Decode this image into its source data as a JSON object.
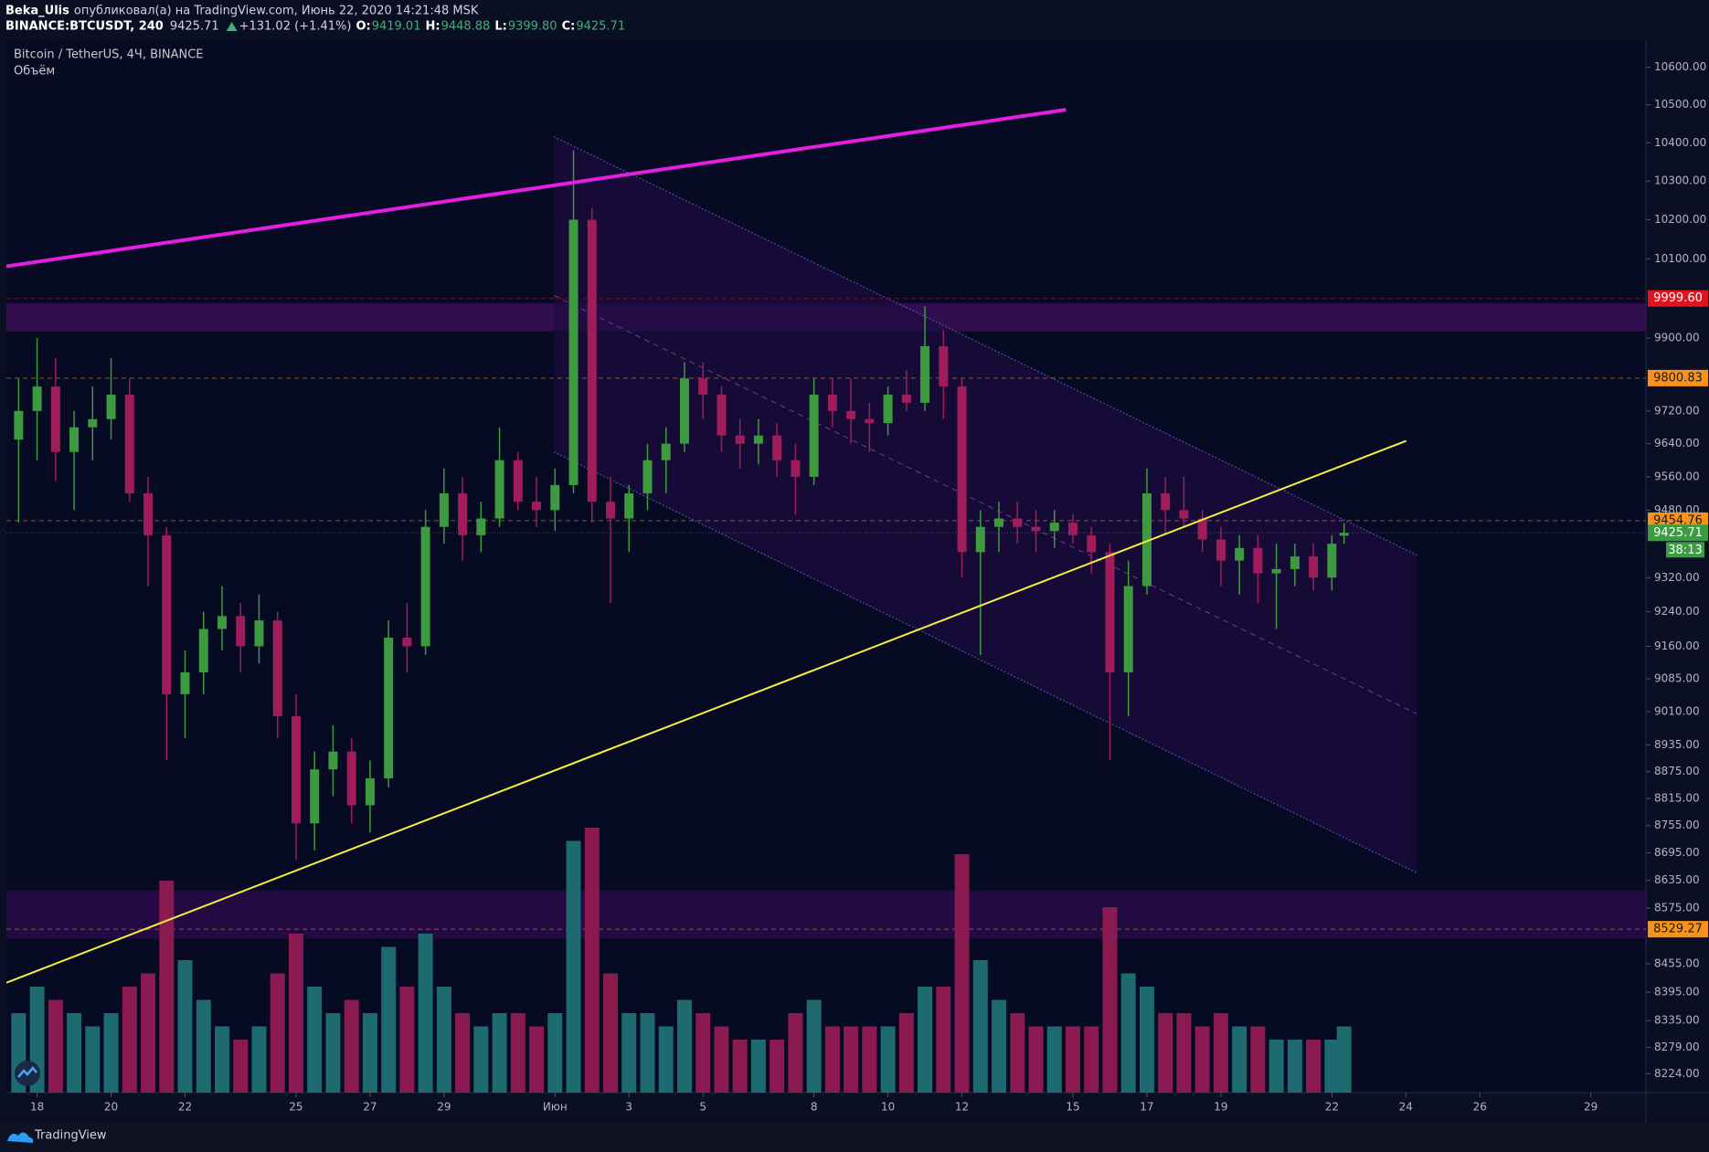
{
  "header": {
    "author": "Beka_Ulis",
    "published": "опубликовал(а) на TradingView.com, Июнь 22, 2020 14:21:48 MSK",
    "symbol": "BINANCE:BTCUSDT, 240",
    "last": "9425.71",
    "change": "+131.02 (+1.41%)",
    "ohlc": [
      {
        "label": "O:",
        "value": "9419.01"
      },
      {
        "label": "H:",
        "value": "9448.88"
      },
      {
        "label": "L:",
        "value": "9399.80"
      },
      {
        "label": "C:",
        "value": "9425.71"
      }
    ]
  },
  "footer": {
    "brand": "TradingView"
  },
  "chart_data": {
    "type": "candlestick",
    "title": "Bitcoin / TetherUS, 4Ч, BINANCE",
    "volume_label": "Объём",
    "log": true,
    "ylim": [
      8185,
      10670
    ],
    "xlim": [
      17.17,
      61.49
    ],
    "yticks": [
      {
        "value": 10600,
        "label": "10600.00"
      },
      {
        "value": 10500,
        "label": "10500.00"
      },
      {
        "value": 10400,
        "label": "10400.00"
      },
      {
        "value": 10300,
        "label": "10300.00"
      },
      {
        "value": 10200,
        "label": "10200.00"
      },
      {
        "value": 10100,
        "label": "10100.00"
      },
      {
        "value": 9900,
        "label": "9900.00"
      },
      {
        "value": 9720,
        "label": "9720.00"
      },
      {
        "value": 9640,
        "label": "9640.00"
      },
      {
        "value": 9560,
        "label": "9560.00"
      },
      {
        "value": 9480,
        "label": "9480.00"
      },
      {
        "value": 9320,
        "label": "9320.00"
      },
      {
        "value": 9240,
        "label": "9240.00"
      },
      {
        "value": 9160,
        "label": "9160.00"
      },
      {
        "value": 9085,
        "label": "9085.00"
      },
      {
        "value": 9010,
        "label": "9010.00"
      },
      {
        "value": 8935,
        "label": "8935.00"
      },
      {
        "value": 8875,
        "label": "8875.00"
      },
      {
        "value": 8815,
        "label": "8815.00"
      },
      {
        "value": 8755,
        "label": "8755.00"
      },
      {
        "value": 8695,
        "label": "8695.00"
      },
      {
        "value": 8635,
        "label": "8635.00"
      },
      {
        "value": 8575,
        "label": "8575.00"
      },
      {
        "value": 8455,
        "label": "8455.00"
      },
      {
        "value": 8395,
        "label": "8395.00"
      },
      {
        "value": 8335,
        "label": "8335.00"
      },
      {
        "value": 8279,
        "label": "8279.00"
      },
      {
        "value": 8224,
        "label": "8224.00"
      }
    ],
    "xticks": [
      18,
      20,
      22,
      25,
      27,
      29,
      {
        "value": 32,
        "label": "Июн"
      },
      {
        "value": 34,
        "label": "3"
      },
      {
        "value": 36,
        "label": "5"
      },
      {
        "value": 39,
        "label": "8"
      },
      {
        "value": 41,
        "label": "10"
      },
      {
        "value": 43,
        "label": "12"
      },
      {
        "value": 46,
        "label": "15"
      },
      {
        "value": 48,
        "label": "17"
      },
      {
        "value": 50,
        "label": "19"
      },
      {
        "value": 53,
        "label": "22"
      },
      {
        "value": 55,
        "label": "24"
      },
      {
        "value": 57,
        "label": "26"
      },
      {
        "value": 60,
        "label": "29"
      }
    ],
    "up_color": "#3e9a3f",
    "down_color": "#a01d5b",
    "volume_up_color": "#1d6a70",
    "volume_down_color": "#8a1a4f",
    "x": [
      17.5,
      18,
      18.5,
      19,
      19.5,
      20,
      20.5,
      21,
      21.5,
      22,
      22.5,
      23,
      23.5,
      24,
      24.5,
      25,
      25.5,
      26,
      26.5,
      27,
      27.5,
      28,
      28.5,
      29,
      29.5,
      30,
      30.5,
      31,
      31.5,
      32,
      32.5,
      33,
      33.5,
      34,
      34.5,
      35,
      35.5,
      36,
      36.5,
      37,
      37.5,
      38,
      38.5,
      39,
      39.5,
      40,
      40.5,
      41,
      41.5,
      42,
      42.5,
      43,
      43.5,
      44,
      44.5,
      45,
      45.5,
      46,
      46.5,
      47,
      47.5,
      48,
      48.5,
      49,
      49.5,
      50,
      50.5,
      51,
      51.5,
      52,
      52.5,
      53,
      53.33
    ],
    "open": [
      9650,
      9720,
      9780,
      9620,
      9680,
      9700,
      9760,
      9520,
      9420,
      9050,
      9100,
      9200,
      9230,
      9160,
      9220,
      9000,
      8760,
      8880,
      8920,
      8800,
      8860,
      9180,
      9160,
      9440,
      9520,
      9420,
      9460,
      9600,
      9500,
      9480,
      9540,
      10200,
      9500,
      9460,
      9520,
      9600,
      9640,
      9800,
      9760,
      9660,
      9640,
      9660,
      9600,
      9560,
      9760,
      9720,
      9700,
      9690,
      9760,
      9740,
      9880,
      9780,
      9380,
      9440,
      9460,
      9440,
      9430,
      9450,
      9420,
      9380,
      9100,
      9300,
      9520,
      9480,
      9460,
      9410,
      9360,
      9390,
      9330,
      9340,
      9370,
      9320,
      9419.01
    ],
    "high": [
      9800,
      9900,
      9850,
      9720,
      9780,
      9850,
      9800,
      9560,
      9440,
      9150,
      9240,
      9300,
      9260,
      9280,
      9240,
      9050,
      8920,
      8980,
      8950,
      8900,
      9220,
      9260,
      9480,
      9580,
      9560,
      9500,
      9680,
      9620,
      9560,
      9580,
      10380,
      10230,
      9560,
      9540,
      9640,
      9680,
      9840,
      9840,
      9780,
      9700,
      9700,
      9690,
      9640,
      9800,
      9800,
      9800,
      9740,
      9780,
      9820,
      9980,
      9920,
      9800,
      9480,
      9500,
      9500,
      9480,
      9480,
      9470,
      9440,
      9400,
      9360,
      9580,
      9560,
      9560,
      9480,
      9440,
      9420,
      9420,
      9400,
      9400,
      9400,
      9420,
      9448.88
    ],
    "low": [
      9450,
      9600,
      9550,
      9480,
      9600,
      9650,
      9500,
      9300,
      8900,
      8950,
      9050,
      9150,
      9100,
      9120,
      8950,
      8680,
      8700,
      8820,
      8760,
      8740,
      8840,
      9100,
      9140,
      9400,
      9360,
      9380,
      9440,
      9480,
      9440,
      9430,
      9520,
      9450,
      9260,
      9380,
      9480,
      9520,
      9620,
      9700,
      9620,
      9580,
      9590,
      9560,
      9470,
      9540,
      9680,
      9640,
      9620,
      9660,
      9720,
      9720,
      9700,
      9320,
      9140,
      9380,
      9400,
      9380,
      9390,
      9400,
      9330,
      8900,
      9000,
      9280,
      9420,
      9440,
      9380,
      9300,
      9280,
      9260,
      9200,
      9300,
      9290,
      9290,
      9399.8
    ],
    "close": [
      9720,
      9780,
      9620,
      9680,
      9700,
      9760,
      9520,
      9420,
      9050,
      9100,
      9200,
      9230,
      9160,
      9220,
      9000,
      8760,
      8880,
      8920,
      8800,
      8860,
      9180,
      9160,
      9440,
      9520,
      9420,
      9460,
      9600,
      9500,
      9480,
      9540,
      10200,
      9500,
      9460,
      9520,
      9600,
      9640,
      9800,
      9760,
      9660,
      9640,
      9660,
      9600,
      9560,
      9760,
      9720,
      9700,
      9690,
      9760,
      9740,
      9880,
      9780,
      9380,
      9440,
      9460,
      9440,
      9430,
      9450,
      9420,
      9380,
      9100,
      9300,
      9520,
      9480,
      9460,
      9410,
      9360,
      9390,
      9330,
      9340,
      9370,
      9320,
      9400,
      9425.71
    ],
    "volume": [
      30,
      40,
      35,
      30,
      25,
      30,
      40,
      45,
      80,
      50,
      35,
      25,
      20,
      25,
      45,
      60,
      40,
      30,
      35,
      30,
      55,
      40,
      60,
      40,
      30,
      25,
      30,
      30,
      25,
      30,
      95,
      100,
      45,
      30,
      30,
      25,
      35,
      30,
      25,
      20,
      20,
      20,
      30,
      35,
      25,
      25,
      25,
      25,
      30,
      40,
      40,
      90,
      50,
      35,
      30,
      25,
      25,
      25,
      25,
      70,
      45,
      40,
      30,
      30,
      25,
      30,
      25,
      25,
      20,
      20,
      20,
      20,
      25
    ],
    "zones": [
      {
        "color": "#3a0f55",
        "range": [
          9917,
          9988
        ]
      },
      {
        "color": "#2a0b48",
        "range": [
          8509,
          8613
        ]
      }
    ],
    "channel": {
      "color": "#5a5ac8",
      "fill": "#1d0c3e",
      "x": [
        31.97,
        55.3
      ],
      "upper": [
        10416,
        9373
      ],
      "middle": [
        10007,
        9005
      ],
      "lower": [
        9620,
        8651
      ]
    },
    "trendlines": [
      {
        "color": "#e51fe0",
        "x": [
          17.17,
          45.81
        ],
        "y": [
          10081,
          10487
        ]
      },
      {
        "color": "#f5f03a",
        "x": [
          17.17,
          55.01
        ],
        "y": [
          8415,
          9647
        ]
      }
    ],
    "price_lines": [
      {
        "value": 9999.6,
        "label": "9999.60",
        "color": "#e0131f",
        "text_color": "#ffffff"
      },
      {
        "value": 9800.83,
        "color": "#f7931a",
        "text_color": "#1a1a1a"
      },
      {
        "value": 9454.76,
        "color": "#f7931a",
        "text_color": "#1a1a1a"
      },
      {
        "value": 9425.71,
        "color": "#3a9d3f",
        "text_color": "#ffffff",
        "countdown": "38:13"
      },
      {
        "value": 8529.27,
        "color": "#f7931a",
        "text_color": "#1a1a1a"
      }
    ]
  }
}
